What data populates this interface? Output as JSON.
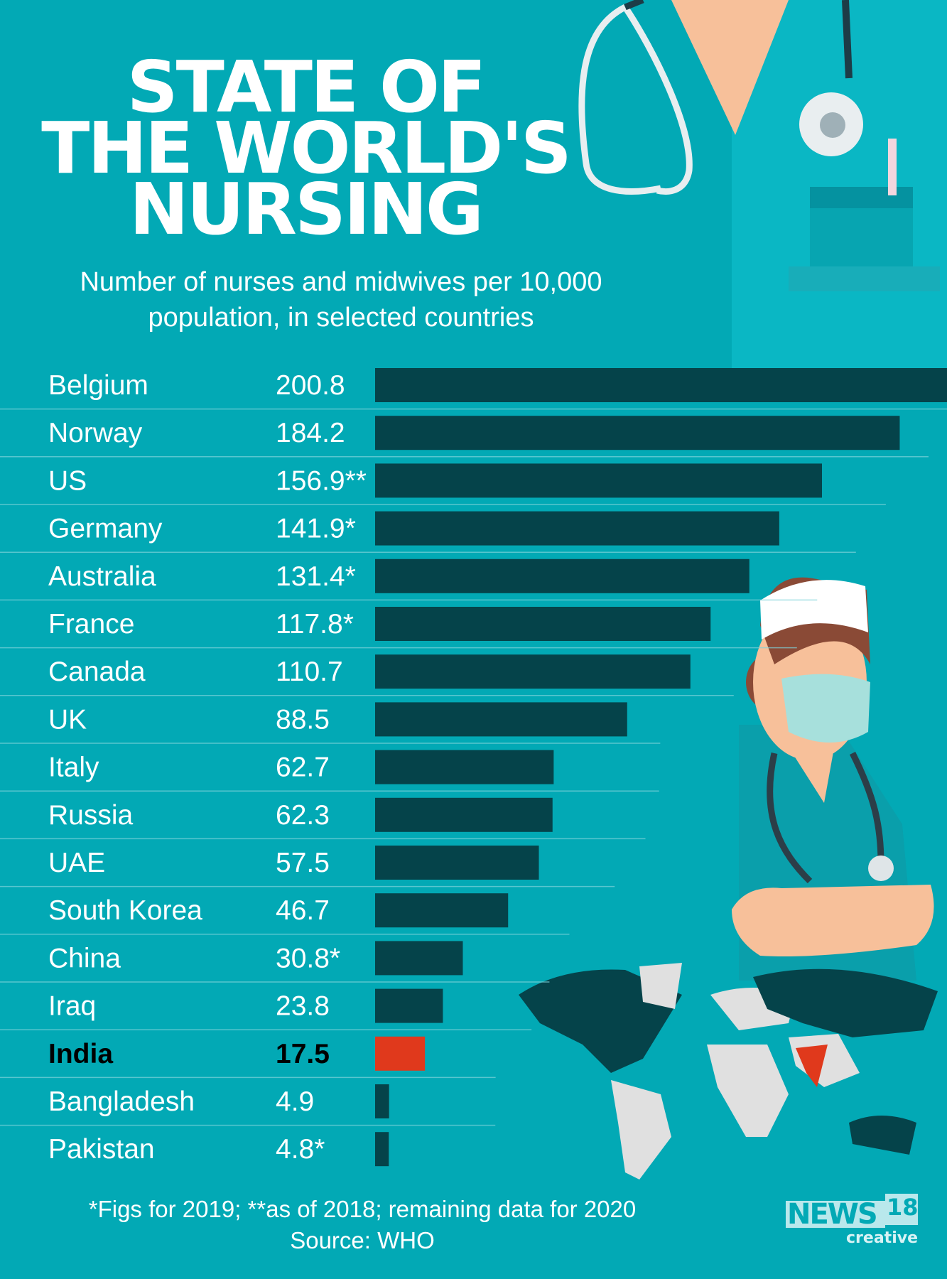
{
  "title": [
    "STATE OF",
    "THE WORLD'S",
    "NURSING"
  ],
  "subtitle": [
    "Number of nurses and midwives per 10,000",
    "population, in selected countries"
  ],
  "colors": {
    "background": "#02a9b5",
    "bar": "#05434a",
    "highlight": "#e0391c",
    "text": "#ffffff",
    "highlight_text": "#000000"
  },
  "chart_data": {
    "type": "bar",
    "orientation": "horizontal",
    "categories": [
      "Belgium",
      "Norway",
      "US",
      "Germany",
      "Australia",
      "France",
      "Canada",
      "UK",
      "Italy",
      "Russia",
      "UAE",
      "South Korea",
      "China",
      "Iraq",
      "India",
      "Bangladesh",
      "Pakistan"
    ],
    "values": [
      200.8,
      184.2,
      156.9,
      141.9,
      131.4,
      117.8,
      110.7,
      88.5,
      62.7,
      62.3,
      57.5,
      46.7,
      30.8,
      23.8,
      17.5,
      4.9,
      4.8
    ],
    "value_labels": [
      "200.8",
      "184.2",
      "156.9**",
      "141.9*",
      "131.4*",
      "117.8*",
      "110.7",
      "88.5",
      "62.7",
      "62.3",
      "57.5",
      "46.7",
      "30.8*",
      "23.8",
      "17.5",
      "4.9",
      "4.8*"
    ],
    "highlight": "India",
    "xlim": [
      0,
      200.8
    ],
    "grid": false
  },
  "footer": {
    "note": "*Figs for 2019; **as of 2018; remaining data for 2020",
    "source": "Source: WHO"
  },
  "logo": {
    "brand": "NEWS",
    "number": "18",
    "sub": "creative"
  }
}
